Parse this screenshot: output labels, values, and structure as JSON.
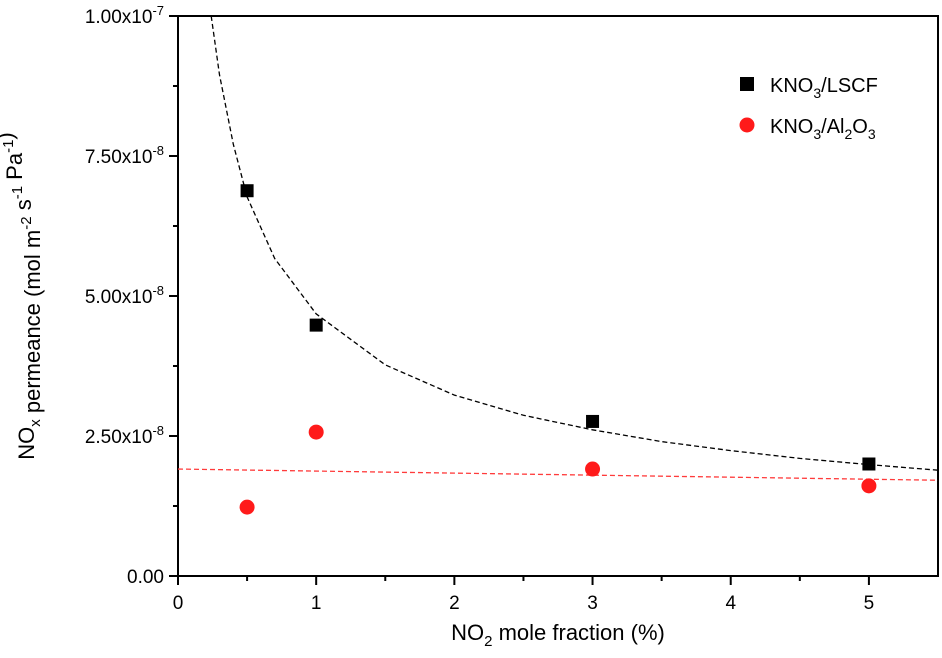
{
  "chart_data": {
    "type": "scatter",
    "xlabel": {
      "main": "NO",
      "sub": "2",
      "rest": " mole fraction (%)"
    },
    "ylabel": {
      "parts": [
        {
          "t": "NO",
          "s": "normal"
        },
        {
          "t": "x",
          "s": "sub"
        },
        {
          "t": " permeance (mol m",
          "s": "normal"
        },
        {
          "t": "-2",
          "s": "sup"
        },
        {
          "t": " s",
          "s": "normal"
        },
        {
          "t": "-1",
          "s": "sup"
        },
        {
          "t": " Pa",
          "s": "normal"
        },
        {
          "t": "-1",
          "s": "sup"
        },
        {
          "t": ")",
          "s": "normal"
        }
      ]
    },
    "xlim": [
      0,
      5.5
    ],
    "ylim": [
      0,
      1e-07
    ],
    "x_ticks": [
      0,
      1,
      2,
      3,
      4,
      5
    ],
    "x_tick_labels": [
      "0",
      "1",
      "2",
      "3",
      "4",
      "5"
    ],
    "y_ticks": [
      0,
      2.5e-08,
      5e-08,
      7.5e-08,
      1e-07
    ],
    "y_tick_labels": [
      {
        "base": "0.00",
        "exp": ""
      },
      {
        "base": "2.50x10",
        "exp": "-8"
      },
      {
        "base": "5.00x10",
        "exp": "-8"
      },
      {
        "base": "7.50x10",
        "exp": "-8"
      },
      {
        "base": "1.00x10",
        "exp": "-7"
      }
    ],
    "grid": false,
    "legend_position": "top-right",
    "series": [
      {
        "name": {
          "a": "KNO",
          "a_sub": "3",
          "b": "/LSCF",
          "b_sub": "",
          "c": ""
        },
        "marker": "square",
        "color": "#000000",
        "x": [
          0.5,
          1,
          3,
          5
        ],
        "y": [
          6.88e-08,
          4.48e-08,
          2.76e-08,
          2e-08
        ],
        "fit": {
          "type": "power",
          "style": "dashed",
          "color": "#000000",
          "x": [
            0.24,
            0.3,
            0.4,
            0.5,
            0.7,
            1,
            1.5,
            2,
            2.5,
            3,
            3.5,
            4,
            4.5,
            5,
            5.5
          ],
          "y": [
            1e-07,
            8.95e-08,
            7.71e-08,
            6.77e-08,
            5.67e-08,
            4.68e-08,
            3.77e-08,
            3.23e-08,
            2.87e-08,
            2.61e-08,
            2.4e-08,
            2.24e-08,
            2.1e-08,
            1.99e-08,
            1.89e-08
          ]
        }
      },
      {
        "name": {
          "a": "KNO",
          "a_sub": "3",
          "b": "/Al",
          "b_sub": "2",
          "c": "O",
          "c_sub": "3"
        },
        "marker": "circle",
        "color": "#ff1a1a",
        "x": [
          0.5,
          1,
          3,
          5
        ],
        "y": [
          1.23e-08,
          2.57e-08,
          1.91e-08,
          1.61e-08
        ],
        "fit": {
          "type": "linear",
          "style": "dashed",
          "color": "#ff3b3b",
          "x": [
            0,
            5.5
          ],
          "y": [
            1.91e-08,
            1.71e-08
          ]
        }
      }
    ]
  }
}
